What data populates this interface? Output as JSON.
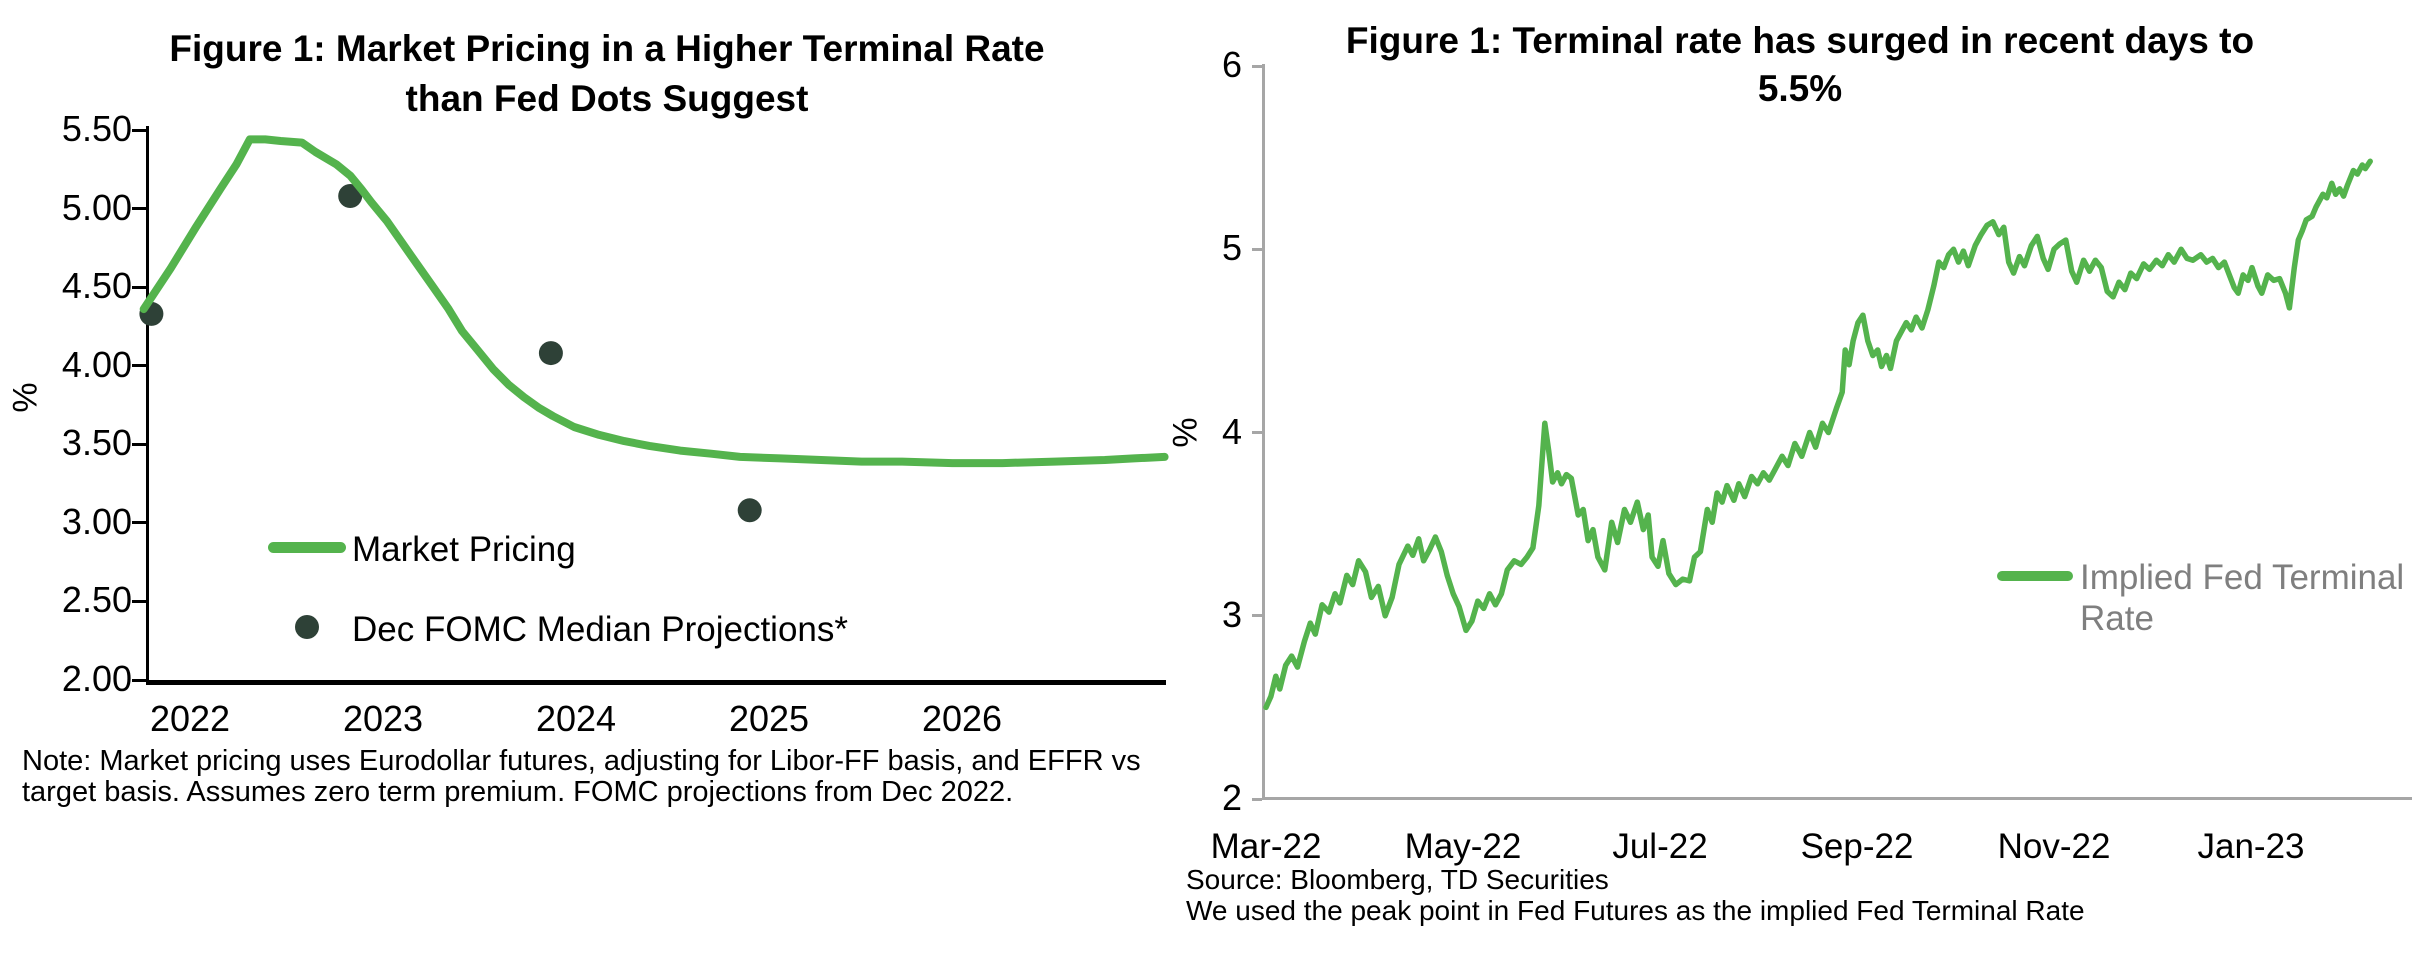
{
  "colors": {
    "line_green": "#54b34d",
    "dot_dark": "#2e4137",
    "axis_gray": "#a6a6a6",
    "legend_gray_text": "#7f7f7f",
    "text_black": "#000000",
    "background": "#ffffff"
  },
  "chart_data": [
    {
      "type": "line",
      "title_line1": "Figure 1: Market Pricing in a Higher Terminal Rate",
      "title_line2": "than Fed Dots Suggest",
      "ylabel": "%",
      "ylim": [
        2.0,
        5.5
      ],
      "yticks": [
        "5.50",
        "5.00",
        "4.50",
        "4.00",
        "3.50",
        "3.00",
        "2.50",
        "2.00"
      ],
      "xticks": [
        "2022",
        "2023",
        "2024",
        "2025",
        "2026"
      ],
      "grid": false,
      "legend_position": "inside-lower-left",
      "series": [
        {
          "name": "Market Pricing",
          "type": "line",
          "color": "#54b34d",
          "points": [
            [
              2021.76,
              4.36
            ],
            [
              2021.9,
              4.62
            ],
            [
              2022.03,
              4.88
            ],
            [
              2022.16,
              5.13
            ],
            [
              2022.24,
              5.28
            ],
            [
              2022.31,
              5.44
            ],
            [
              2022.39,
              5.44
            ],
            [
              2022.47,
              5.43
            ],
            [
              2022.58,
              5.42
            ],
            [
              2022.65,
              5.36
            ],
            [
              2022.76,
              5.28
            ],
            [
              2022.83,
              5.21
            ],
            [
              2022.89,
              5.12
            ],
            [
              2022.94,
              5.04
            ],
            [
              2023.02,
              4.92
            ],
            [
              2023.1,
              4.78
            ],
            [
              2023.18,
              4.64
            ],
            [
              2023.26,
              4.5
            ],
            [
              2023.34,
              4.36
            ],
            [
              2023.41,
              4.22
            ],
            [
              2023.49,
              4.1
            ],
            [
              2023.57,
              3.98
            ],
            [
              2023.65,
              3.88
            ],
            [
              2023.73,
              3.8
            ],
            [
              2023.81,
              3.73
            ],
            [
              2023.88,
              3.68
            ],
            [
              2023.99,
              3.61
            ],
            [
              2024.12,
              3.56
            ],
            [
              2024.25,
              3.52
            ],
            [
              2024.38,
              3.49
            ],
            [
              2024.54,
              3.46
            ],
            [
              2024.7,
              3.44
            ],
            [
              2024.85,
              3.42
            ],
            [
              2025.06,
              3.41
            ],
            [
              2025.27,
              3.4
            ],
            [
              2025.48,
              3.39
            ],
            [
              2025.69,
              3.39
            ],
            [
              2025.95,
              3.38
            ],
            [
              2026.21,
              3.38
            ],
            [
              2026.48,
              3.39
            ],
            [
              2026.74,
              3.4
            ],
            [
              2026.89,
              3.41
            ],
            [
              2027.05,
              3.42
            ]
          ]
        },
        {
          "name": "Dec FOMC Median Projections*",
          "type": "scatter",
          "color": "#2e4137",
          "projection_years": [
            "2022",
            "2023",
            "2024",
            "2025"
          ],
          "values": [
            4.33,
            5.08,
            4.08,
            3.08
          ],
          "points": [
            [
              2021.8,
              4.33
            ],
            [
              2022.83,
              5.08
            ],
            [
              2023.87,
              4.08
            ],
            [
              2024.9,
              3.08
            ]
          ]
        }
      ],
      "legend": [
        {
          "label": "Market Pricing",
          "swatch": "line"
        },
        {
          "label": "Dec FOMC Median Projections*",
          "swatch": "dot"
        }
      ],
      "note_lines": [
        "Note: Market pricing uses Eurodollar futures, adjusting for Libor-FF basis, and EFFR vs",
        "target basis. Assumes zero term premium. FOMC projections from Dec 2022."
      ]
    },
    {
      "type": "line",
      "title_line1": "Figure 1: Terminal rate has surged in recent days to",
      "title_line2": "5.5%",
      "ylabel": "%",
      "ylim": [
        2,
        6
      ],
      "yticks": [
        "6",
        "5",
        "4",
        "3",
        "2"
      ],
      "xticks": [
        "Mar-22",
        "May-22",
        "Jul-22",
        "Sep-22",
        "Nov-22",
        "Jan-23"
      ],
      "grid": false,
      "legend_position": "inside-right",
      "series": [
        {
          "name": "Implied Fed Terminal Rate",
          "type": "line",
          "color": "#54b34d",
          "x_unit": "months since Mar-22",
          "points": [
            [
              0,
              2.5
            ],
            [
              0.05,
              2.56
            ],
            [
              0.1,
              2.67
            ],
            [
              0.14,
              2.6
            ],
            [
              0.2,
              2.73
            ],
            [
              0.26,
              2.78
            ],
            [
              0.32,
              2.72
            ],
            [
              0.39,
              2.86
            ],
            [
              0.45,
              2.96
            ],
            [
              0.5,
              2.9
            ],
            [
              0.57,
              3.06
            ],
            [
              0.64,
              3.02
            ],
            [
              0.7,
              3.12
            ],
            [
              0.75,
              3.07
            ],
            [
              0.82,
              3.22
            ],
            [
              0.88,
              3.17
            ],
            [
              0.94,
              3.3
            ],
            [
              1.01,
              3.24
            ],
            [
              1.07,
              3.1
            ],
            [
              1.14,
              3.16
            ],
            [
              1.21,
              3.0
            ],
            [
              1.28,
              3.1
            ],
            [
              1.35,
              3.28
            ],
            [
              1.44,
              3.38
            ],
            [
              1.49,
              3.33
            ],
            [
              1.55,
              3.42
            ],
            [
              1.6,
              3.3
            ],
            [
              1.66,
              3.36
            ],
            [
              1.72,
              3.43
            ],
            [
              1.78,
              3.35
            ],
            [
              1.84,
              3.22
            ],
            [
              1.9,
              3.12
            ],
            [
              1.96,
              3.05
            ],
            [
              2.03,
              2.92
            ],
            [
              2.09,
              2.97
            ],
            [
              2.15,
              3.08
            ],
            [
              2.21,
              3.04
            ],
            [
              2.27,
              3.12
            ],
            [
              2.33,
              3.06
            ],
            [
              2.39,
              3.12
            ],
            [
              2.45,
              3.25
            ],
            [
              2.52,
              3.3
            ],
            [
              2.59,
              3.28
            ],
            [
              2.65,
              3.32
            ],
            [
              2.71,
              3.37
            ],
            [
              2.77,
              3.6
            ],
            [
              2.83,
              4.05
            ],
            [
              2.87,
              3.9
            ],
            [
              2.91,
              3.73
            ],
            [
              2.96,
              3.78
            ],
            [
              3.0,
              3.72
            ],
            [
              3.05,
              3.77
            ],
            [
              3.1,
              3.75
            ],
            [
              3.17,
              3.55
            ],
            [
              3.22,
              3.58
            ],
            [
              3.27,
              3.41
            ],
            [
              3.32,
              3.47
            ],
            [
              3.37,
              3.32
            ],
            [
              3.44,
              3.25
            ],
            [
              3.51,
              3.51
            ],
            [
              3.57,
              3.4
            ],
            [
              3.64,
              3.58
            ],
            [
              3.7,
              3.51
            ],
            [
              3.77,
              3.62
            ],
            [
              3.83,
              3.47
            ],
            [
              3.88,
              3.55
            ],
            [
              3.92,
              3.32
            ],
            [
              3.98,
              3.27
            ],
            [
              4.03,
              3.41
            ],
            [
              4.09,
              3.23
            ],
            [
              4.16,
              3.17
            ],
            [
              4.23,
              3.2
            ],
            [
              4.3,
              3.19
            ],
            [
              4.35,
              3.32
            ],
            [
              4.41,
              3.35
            ],
            [
              4.48,
              3.58
            ],
            [
              4.53,
              3.51
            ],
            [
              4.58,
              3.67
            ],
            [
              4.63,
              3.62
            ],
            [
              4.68,
              3.71
            ],
            [
              4.75,
              3.63
            ],
            [
              4.8,
              3.72
            ],
            [
              4.86,
              3.65
            ],
            [
              4.93,
              3.76
            ],
            [
              4.99,
              3.72
            ],
            [
              5.05,
              3.78
            ],
            [
              5.11,
              3.74
            ],
            [
              5.17,
              3.8
            ],
            [
              5.24,
              3.87
            ],
            [
              5.3,
              3.82
            ],
            [
              5.37,
              3.94
            ],
            [
              5.44,
              3.87
            ],
            [
              5.52,
              4.0
            ],
            [
              5.58,
              3.92
            ],
            [
              5.65,
              4.05
            ],
            [
              5.71,
              4.0
            ],
            [
              5.79,
              4.13
            ],
            [
              5.85,
              4.22
            ],
            [
              5.88,
              4.45
            ],
            [
              5.92,
              4.37
            ],
            [
              5.96,
              4.5
            ],
            [
              6.01,
              4.6
            ],
            [
              6.06,
              4.64
            ],
            [
              6.11,
              4.5
            ],
            [
              6.16,
              4.42
            ],
            [
              6.21,
              4.45
            ],
            [
              6.25,
              4.36
            ],
            [
              6.3,
              4.42
            ],
            [
              6.34,
              4.35
            ],
            [
              6.4,
              4.5
            ],
            [
              6.46,
              4.56
            ],
            [
              6.5,
              4.6
            ],
            [
              6.55,
              4.56
            ],
            [
              6.6,
              4.63
            ],
            [
              6.66,
              4.57
            ],
            [
              6.72,
              4.67
            ],
            [
              6.78,
              4.8
            ],
            [
              6.83,
              4.93
            ],
            [
              6.88,
              4.9
            ],
            [
              6.93,
              4.97
            ],
            [
              6.98,
              5.0
            ],
            [
              7.03,
              4.93
            ],
            [
              7.08,
              4.99
            ],
            [
              7.13,
              4.91
            ],
            [
              7.2,
              5.02
            ],
            [
              7.26,
              5.08
            ],
            [
              7.32,
              5.13
            ],
            [
              7.38,
              5.15
            ],
            [
              7.44,
              5.08
            ],
            [
              7.49,
              5.12
            ],
            [
              7.54,
              4.93
            ],
            [
              7.59,
              4.87
            ],
            [
              7.65,
              4.96
            ],
            [
              7.7,
              4.91
            ],
            [
              7.77,
              5.02
            ],
            [
              7.83,
              5.07
            ],
            [
              7.89,
              4.95
            ],
            [
              7.94,
              4.89
            ],
            [
              8.0,
              5.0
            ],
            [
              8.06,
              5.03
            ],
            [
              8.12,
              5.05
            ],
            [
              8.18,
              4.88
            ],
            [
              8.23,
              4.82
            ],
            [
              8.3,
              4.94
            ],
            [
              8.36,
              4.88
            ],
            [
              8.42,
              4.94
            ],
            [
              8.48,
              4.9
            ],
            [
              8.54,
              4.77
            ],
            [
              8.6,
              4.74
            ],
            [
              8.66,
              4.82
            ],
            [
              8.72,
              4.78
            ],
            [
              8.78,
              4.87
            ],
            [
              8.84,
              4.84
            ],
            [
              8.91,
              4.92
            ],
            [
              8.97,
              4.89
            ],
            [
              9.04,
              4.94
            ],
            [
              9.1,
              4.91
            ],
            [
              9.16,
              4.97
            ],
            [
              9.22,
              4.93
            ],
            [
              9.29,
              5.0
            ],
            [
              9.35,
              4.95
            ],
            [
              9.41,
              4.94
            ],
            [
              9.49,
              4.97
            ],
            [
              9.55,
              4.93
            ],
            [
              9.61,
              4.95
            ],
            [
              9.67,
              4.9
            ],
            [
              9.73,
              4.93
            ],
            [
              9.78,
              4.86
            ],
            [
              9.83,
              4.79
            ],
            [
              9.87,
              4.76
            ],
            [
              9.92,
              4.86
            ],
            [
              9.97,
              4.83
            ],
            [
              10.01,
              4.9
            ],
            [
              10.07,
              4.8
            ],
            [
              10.11,
              4.76
            ],
            [
              10.17,
              4.86
            ],
            [
              10.23,
              4.83
            ],
            [
              10.29,
              4.84
            ],
            [
              10.35,
              4.76
            ],
            [
              10.39,
              4.68
            ],
            [
              10.44,
              4.9
            ],
            [
              10.48,
              5.05
            ],
            [
              10.52,
              5.1
            ],
            [
              10.56,
              5.16
            ],
            [
              10.62,
              5.18
            ],
            [
              10.66,
              5.23
            ],
            [
              10.73,
              5.3
            ],
            [
              10.77,
              5.28
            ],
            [
              10.82,
              5.36
            ],
            [
              10.86,
              5.3
            ],
            [
              10.9,
              5.33
            ],
            [
              10.94,
              5.29
            ],
            [
              10.98,
              5.35
            ],
            [
              11.04,
              5.43
            ],
            [
              11.08,
              5.41
            ],
            [
              11.13,
              5.46
            ],
            [
              11.16,
              5.44
            ],
            [
              11.21,
              5.48
            ]
          ]
        }
      ],
      "legend": [
        {
          "label": "Implied Fed Terminal Rate",
          "lines": [
            "Implied Fed Terminal",
            "Rate"
          ],
          "swatch": "line"
        }
      ],
      "source_line": "Source: Bloomberg, TD Securities",
      "footnote_line": "We used the peak point in Fed Futures as the implied Fed Terminal Rate"
    }
  ]
}
